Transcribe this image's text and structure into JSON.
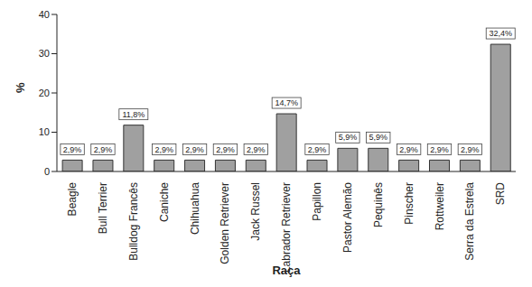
{
  "chart_data": {
    "type": "bar",
    "x_label": "Raça",
    "y_label": "%",
    "categories": [
      "Beagle",
      "Bull Terrier",
      "Bulldog Francês",
      "Caniche",
      "Chihuahua",
      "Golden Retriever",
      "Jack Russel",
      "Labrador Retriever",
      "Papillon",
      "Pastor Alemão",
      "Pequinês",
      "Pinscher",
      "Rottweiler",
      "Serra da Estrela",
      "SRD"
    ],
    "values": [
      2.9,
      2.9,
      11.8,
      2.9,
      2.9,
      2.9,
      2.9,
      14.7,
      2.9,
      5.9,
      5.9,
      2.9,
      2.9,
      2.9,
      32.4
    ],
    "value_labels": [
      "2,9%",
      "2,9%",
      "11,8%",
      "2,9%",
      "2,9%",
      "2,9%",
      "2,9%",
      "14,7%",
      "2,9%",
      "5,9%",
      "5,9%",
      "2,9%",
      "2,9%",
      "2,9%",
      "32,4%"
    ],
    "color": "#a0a0a0",
    "ylim": [
      0,
      40
    ],
    "yticks": [
      0,
      10,
      20,
      30,
      40
    ],
    "grid": false,
    "data_labels": true
  }
}
